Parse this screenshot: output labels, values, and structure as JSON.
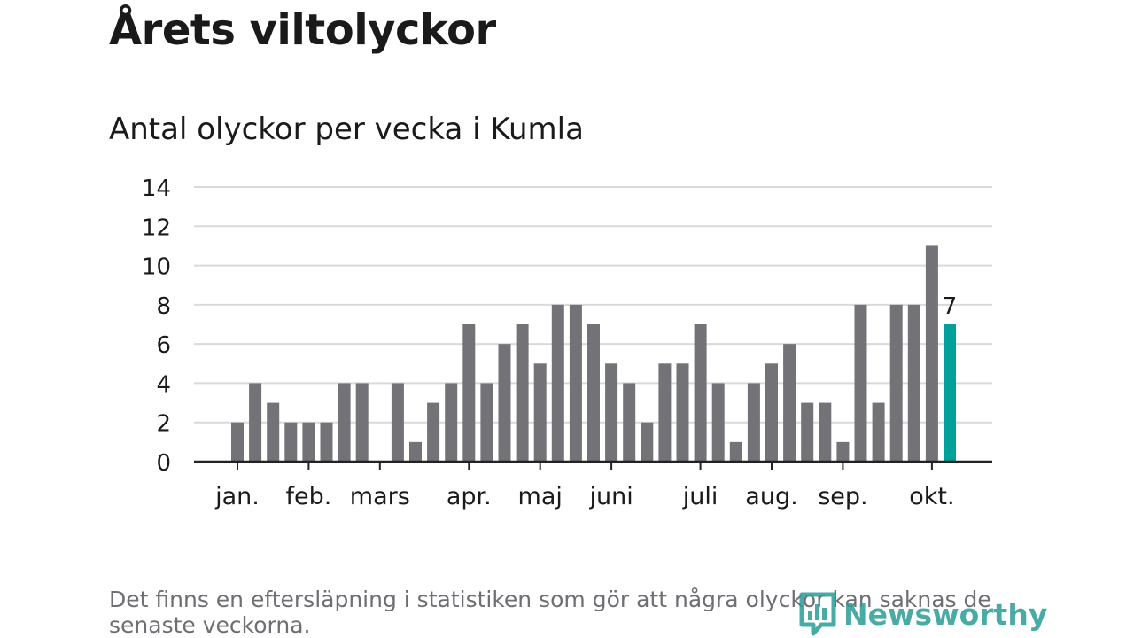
{
  "header": {
    "title": "Årets viltolyckor",
    "subtitle": "Antal olyckor per vecka i Kumla"
  },
  "footer": {
    "note": "Det finns en eftersläpning i statistiken som gör att några olyckor kan saknas de senaste veckorna.",
    "brand": "Newsworthy",
    "brand_icon": "bar-chart-logo-icon"
  },
  "colors": {
    "bar": "#737277",
    "highlight": "#00a19a",
    "grid": "#d9d9d9",
    "axis": "#222222"
  },
  "chart_data": {
    "type": "bar",
    "title": "Antal olyckor per vecka i Kumla",
    "xlabel": "",
    "ylabel": "",
    "ylim": [
      0,
      14
    ],
    "y_ticks": [
      0,
      2,
      4,
      6,
      8,
      10,
      12,
      14
    ],
    "x_range_weeks": [
      1,
      43
    ],
    "grid": true,
    "month_labels": [
      {
        "label": "jan.",
        "week": 3
      },
      {
        "label": "feb.",
        "week": 7
      },
      {
        "label": "mars",
        "week": 11
      },
      {
        "label": "apr.",
        "week": 16
      },
      {
        "label": "maj",
        "week": 20
      },
      {
        "label": "juni",
        "week": 24
      },
      {
        "label": "juli",
        "week": 29
      },
      {
        "label": "aug.",
        "week": 33
      },
      {
        "label": "sep.",
        "week": 37
      },
      {
        "label": "okt.",
        "week": 42
      }
    ],
    "weeks": [
      3,
      4,
      5,
      6,
      7,
      8,
      9,
      10,
      11,
      12,
      13,
      14,
      15,
      16,
      17,
      18,
      19,
      20,
      21,
      22,
      23,
      24,
      25,
      26,
      27,
      28,
      29,
      30,
      31,
      32,
      33,
      34,
      35,
      36,
      37,
      38,
      39,
      40,
      41,
      42,
      43
    ],
    "values": [
      2,
      4,
      3,
      2,
      2,
      2,
      4,
      4,
      0,
      4,
      1,
      3,
      4,
      7,
      4,
      6,
      7,
      5,
      8,
      8,
      7,
      5,
      4,
      2,
      5,
      5,
      7,
      4,
      1,
      4,
      5,
      6,
      3,
      3,
      1,
      8,
      3,
      8,
      8,
      11,
      7
    ],
    "highlight_last": true,
    "last_value_label": "7"
  }
}
